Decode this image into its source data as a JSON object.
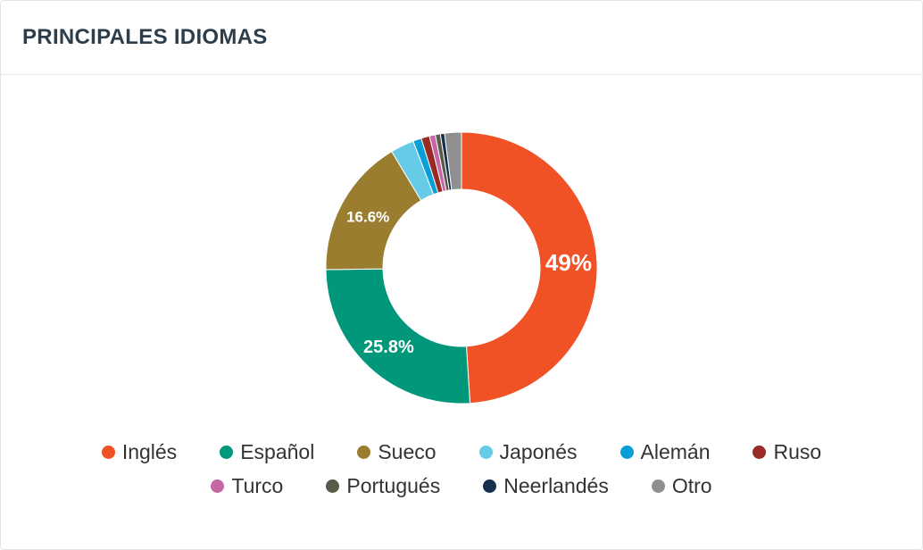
{
  "header": {
    "title": "PRINCIPALES IDIOMAS"
  },
  "chart_data": {
    "type": "pie",
    "subtype": "donut",
    "title": "PRINCIPALES IDIOMAS",
    "legend": "bottom",
    "categories": [
      "Inglés",
      "Español",
      "Sueco",
      "Japonés",
      "Alemán",
      "Ruso",
      "Turco",
      "Portugués",
      "Neerlandés",
      "Otro"
    ],
    "values": [
      49,
      25.8,
      16.6,
      2.8,
      1.0,
      1.0,
      0.7,
      0.6,
      0.5,
      2.0
    ],
    "labels": [
      "49%",
      "25.8%",
      "16.6%",
      "",
      "",
      "",
      "",
      "",
      "",
      ""
    ],
    "colors": [
      "#f05125",
      "#00977a",
      "#9a7d2e",
      "#65cbe6",
      "#089fd7",
      "#982b25",
      "#c566a5",
      "#5a5a48",
      "#14304f",
      "#8f8f8f"
    ]
  }
}
